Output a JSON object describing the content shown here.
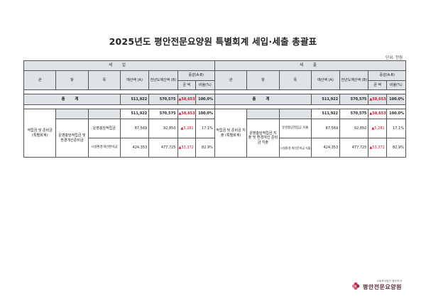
{
  "title": "2025년도 평안전문요양원  특별회계 세입·세출 총괄표",
  "unit": "단위: 천원",
  "revenue": {
    "section": "세 입",
    "headers": {
      "gwan": "관",
      "hang": "항",
      "mok": "목",
      "budget": "예산액\n(A)",
      "prev": "전년도예산액\n(B)",
      "diff": "증감(A-B)",
      "amount": "금 액",
      "ratio": "비율(%)"
    },
    "total": {
      "label": "총 계",
      "budget": "511,922",
      "prev": "570,575",
      "amount": "▲58,653",
      "ratio": "100.0%"
    },
    "gwan": "적립금 및\n준비금\n(특별회계)",
    "gwan_row": {
      "budget": "511,922",
      "prev": "570,575",
      "amount": "▲58,653",
      "ratio": "100.0%"
    },
    "hang": "운영충당적립금\n및\n환경개선준비금",
    "rows": [
      {
        "mok": "운영충당적립금",
        "budget": "87,569",
        "prev": "92,850",
        "amount": "▲5,281",
        "ratio": "17.1%"
      },
      {
        "mok": "시설환경개선준비금",
        "budget": "424,353",
        "prev": "477,725",
        "amount": "▲53,372",
        "ratio": "82.9%"
      }
    ]
  },
  "expense": {
    "section": "세 출",
    "headers": {
      "gwan": "관",
      "hang": "항",
      "mok": "목",
      "budget": "예산액\n(A)",
      "prev": "전년도예산액\n(B)",
      "diff": "증감(A-B)",
      "amount": "금 액",
      "ratio": "비율(%)"
    },
    "total": {
      "label": "총 계",
      "budget": "511,922",
      "prev": "570,575",
      "amount": "▲58,653",
      "ratio": "100.0%"
    },
    "gwan": "적립금 및\n준비금 지출\n(특별회계)",
    "gwan_row": {
      "budget": "511,922",
      "prev": "570,575",
      "amount": "▲58,653",
      "ratio": "100.0%"
    },
    "hang": "운영충당적립금\n지출 및 환경개선\n준비금 지출",
    "rows": [
      {
        "mok": "운영충당적립금 지출",
        "budget": "87,569",
        "prev": "92,850",
        "amount": "▲5,281",
        "ratio": "17.1%"
      },
      {
        "mok": "시설환경 개선준비금 지출",
        "budget": "424,353",
        "prev": "477,725",
        "amount": "▲53,372",
        "ratio": "82.9%"
      }
    ]
  },
  "footer": {
    "sub": "사회복지법인 평안지의",
    "name": "평안전문요양원"
  },
  "colors": {
    "header_fill": "#dfe3e8",
    "negative": "#c0182b",
    "logo": "#5a2b3a"
  }
}
